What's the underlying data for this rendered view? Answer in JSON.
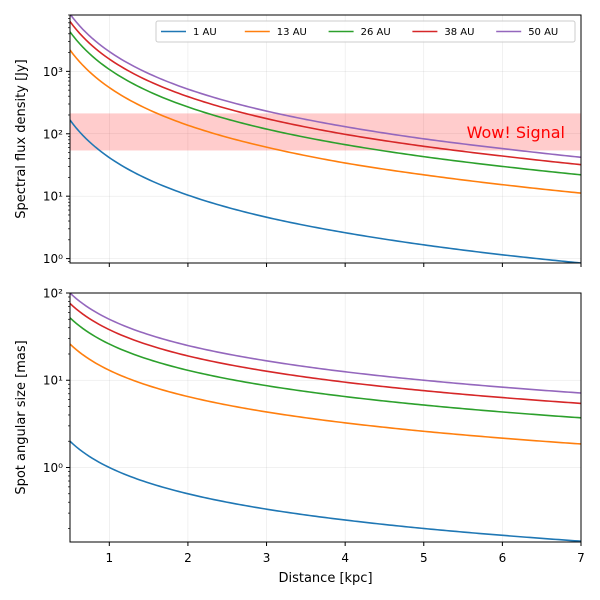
{
  "chart_data": [
    {
      "type": "line",
      "ylabel": "Spectral flux density [Jy]",
      "yscale": "log",
      "xlim": [
        0.5,
        7
      ],
      "ylim": [
        0.85,
        8000
      ],
      "ytick_labels": [
        "10⁰",
        "10¹",
        "10²",
        "10³"
      ],
      "grid": "on (faint)",
      "legend_position": "top, single row",
      "band": {
        "label": "Wow! Signal",
        "y_from": 54,
        "y_to": 212,
        "color": "#ff0000"
      },
      "series": [
        {
          "name": "1 AU",
          "color": "#1f77b4",
          "x": [
            0.5,
            1,
            2,
            3,
            4,
            5,
            6,
            7
          ],
          "values": [
            166,
            41.5,
            10.4,
            4.6,
            2.6,
            1.66,
            1.15,
            0.85
          ]
        },
        {
          "name": "13 AU",
          "color": "#ff7f0e",
          "x": [
            0.5,
            1,
            2,
            3,
            4,
            5,
            6,
            7
          ],
          "values": [
            2200,
            550,
            137,
            61,
            34,
            22,
            15.3,
            11.2
          ]
        },
        {
          "name": "26 AU",
          "color": "#2ca02c",
          "x": [
            0.5,
            1,
            2,
            3,
            4,
            5,
            6,
            7
          ],
          "values": [
            4300,
            1075,
            269,
            119,
            67,
            43,
            30,
            22
          ]
        },
        {
          "name": "38 AU",
          "color": "#d62728",
          "x": [
            0.5,
            1,
            2,
            3,
            4,
            5,
            6,
            7
          ],
          "values": [
            6300,
            1575,
            394,
            175,
            98,
            63,
            44,
            32
          ]
        },
        {
          "name": "50 AU",
          "color": "#9467bd",
          "x": [
            0.5,
            1,
            2,
            3,
            4,
            5,
            6,
            7
          ],
          "values": [
            8300,
            2075,
            519,
            231,
            130,
            83,
            58,
            42
          ]
        }
      ]
    },
    {
      "type": "line",
      "xlabel": "Distance [kpc]",
      "ylabel": "Spot angular size [mas]",
      "yscale": "log",
      "xlim": [
        0.5,
        7
      ],
      "ylim": [
        0.14,
        100
      ],
      "xtick_labels": [
        "1",
        "2",
        "3",
        "4",
        "5",
        "6",
        "7"
      ],
      "ytick_labels": [
        "10⁰",
        "10¹",
        "10²"
      ],
      "grid": "on (faint)",
      "series": [
        {
          "name": "1 AU",
          "color": "#1f77b4",
          "x": [
            0.5,
            1,
            2,
            3,
            4,
            5,
            6,
            7
          ],
          "values": [
            2.0,
            1.0,
            0.5,
            0.333,
            0.25,
            0.2,
            0.167,
            0.143
          ]
        },
        {
          "name": "13 AU",
          "color": "#ff7f0e",
          "x": [
            0.5,
            1,
            2,
            3,
            4,
            5,
            6,
            7
          ],
          "values": [
            26,
            13,
            6.5,
            4.33,
            3.25,
            2.6,
            2.17,
            1.86
          ]
        },
        {
          "name": "26 AU",
          "color": "#2ca02c",
          "x": [
            0.5,
            1,
            2,
            3,
            4,
            5,
            6,
            7
          ],
          "values": [
            52,
            26,
            13,
            8.67,
            6.5,
            5.2,
            4.33,
            3.71
          ]
        },
        {
          "name": "38 AU",
          "color": "#d62728",
          "x": [
            0.5,
            1,
            2,
            3,
            4,
            5,
            6,
            7
          ],
          "values": [
            76,
            38,
            19,
            12.7,
            9.5,
            7.6,
            6.33,
            5.43
          ]
        },
        {
          "name": "50 AU",
          "color": "#9467bd",
          "x": [
            0.5,
            1,
            2,
            3,
            4,
            5,
            6,
            7
          ],
          "values": [
            100,
            50,
            25,
            16.7,
            12.5,
            10,
            8.33,
            7.14
          ]
        }
      ]
    }
  ]
}
